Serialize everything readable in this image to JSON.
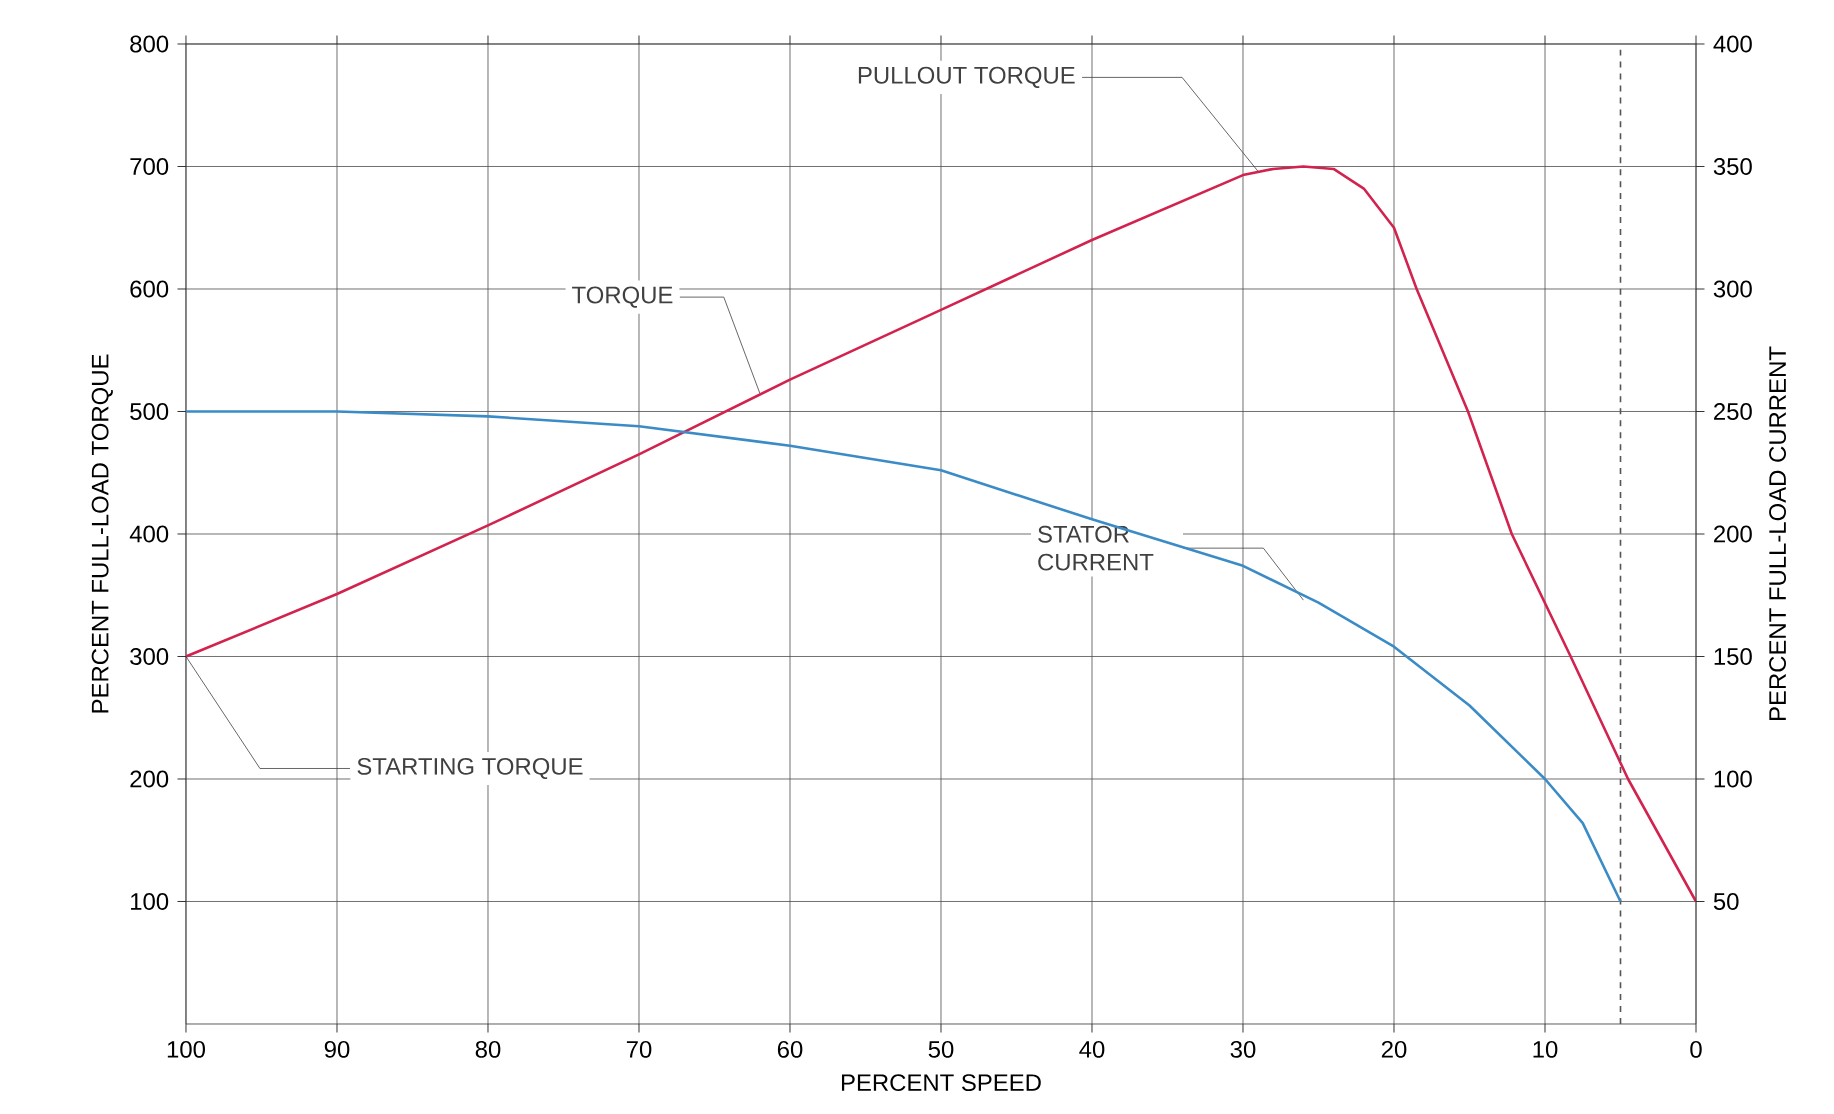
{
  "chart_data": {
    "type": "line",
    "xlabel": "PERCENT SPEED",
    "ylabel": "PERCENT FULL-LOAD TORQUE",
    "y2label": "PERCENT FULL-LOAD CURRENT",
    "xlim": [
      100,
      0
    ],
    "xticks": [
      100,
      90,
      80,
      70,
      60,
      50,
      40,
      30,
      20,
      10,
      0
    ],
    "ylim": [
      0,
      800
    ],
    "yticks": [
      100,
      200,
      300,
      400,
      500,
      600,
      700,
      800
    ],
    "y2lim": [
      0,
      400
    ],
    "y2ticks": [
      50,
      100,
      150,
      200,
      250,
      300,
      350,
      400
    ],
    "grid": true,
    "series": [
      {
        "color": "#d2234e",
        "x": [
          100,
          90,
          80,
          70,
          60,
          50,
          40,
          30,
          28,
          26,
          24,
          22,
          20,
          18.5,
          15.1,
          12.2,
          8.3,
          4.5,
          0
        ],
        "values": [
          300,
          351,
          407,
          465,
          526,
          583,
          640,
          693,
          698,
          700,
          698,
          682,
          650,
          600,
          500,
          400,
          300,
          200,
          100
        ]
      },
      {
        "color": "#3b8bc6",
        "axis": "y2",
        "x": [
          100,
          90,
          80,
          70,
          60,
          50,
          40,
          30,
          25,
          20,
          15,
          10,
          7.5,
          5
        ],
        "values": [
          250,
          250,
          248,
          244,
          236,
          226,
          206,
          187,
          172,
          154,
          130,
          100,
          82,
          50
        ]
      }
    ],
    "ref_lines": [
      {
        "axis": "x",
        "value": 5,
        "line_style": "dashed",
        "color": "#555555"
      }
    ],
    "annotations": [
      {
        "text": "PULLOUT TORQUE",
        "x": 29,
        "y": 696
      },
      {
        "text": "TORQUE",
        "x": 62,
        "y": 515
      },
      {
        "text": "STATOR CURRENT",
        "x": 26,
        "y": 346
      },
      {
        "text": "STARTING TORQUE",
        "x": 100,
        "y": 300
      }
    ]
  }
}
